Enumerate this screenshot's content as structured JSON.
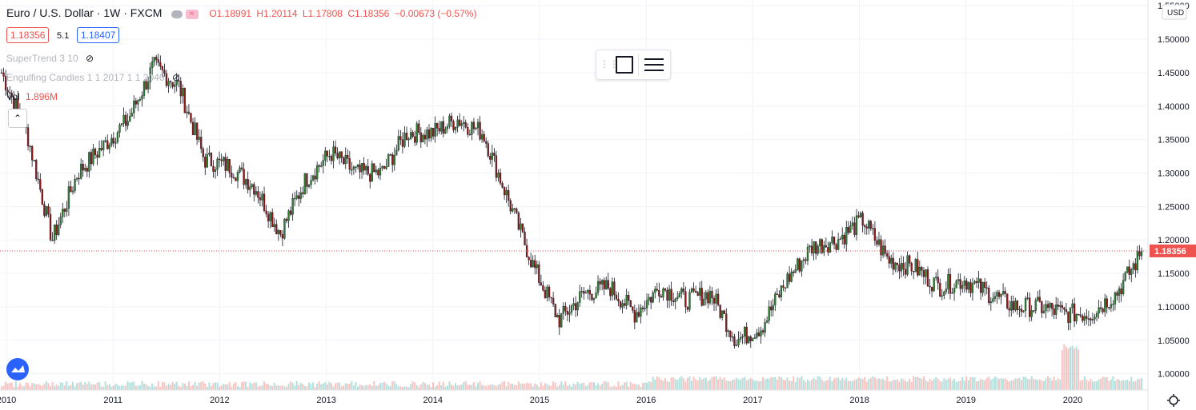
{
  "header": {
    "symbol_title": "Euro / U.S. Dollar · 1W · FXCM",
    "ohlc": {
      "o": "O1.18991",
      "h": "H1.20114",
      "l": "L1.17808",
      "c": "C1.18356",
      "chg": "−0.00673 (−0.57%)"
    },
    "bid": "1.18356",
    "spread": "5.1",
    "ask": "1.18407"
  },
  "indicators": [
    {
      "label": "SuperTrend 3 10"
    },
    {
      "label": "Engulfing Candles 1 1 2017 1 1 2040"
    }
  ],
  "volume": {
    "label": "Vol",
    "value": "1.896M"
  },
  "price_axis": {
    "currency": "USD",
    "last_price": "1.18356",
    "ticks": [
      "1.55000",
      "1.50000",
      "1.45000",
      "1.40000",
      "1.35000",
      "1.30000",
      "1.25000",
      "1.20000",
      "1.15000",
      "1.10000",
      "1.05000",
      "1.00000"
    ]
  },
  "time_axis": {
    "ticks": [
      "2010",
      "2011",
      "2012",
      "2013",
      "2014",
      "2015",
      "2016",
      "2017",
      "2018",
      "2019",
      "2020"
    ]
  },
  "colors": {
    "up": "#26a69a",
    "down": "#ef5350",
    "candle_up": "#2e7d32",
    "candle_down": "#8b1a1a",
    "accent": "#2962ff"
  },
  "chart_data": {
    "type": "candlestick",
    "title": "Euro / U.S. Dollar · 1W · FXCM",
    "ylim": [
      0.99,
      1.555
    ],
    "x": [
      "2009-12",
      "2010-03",
      "2010-06",
      "2010-09",
      "2010-12",
      "2011-03",
      "2011-05",
      "2011-08",
      "2011-11",
      "2012-02",
      "2012-05",
      "2012-07",
      "2012-10",
      "2013-01",
      "2013-04",
      "2013-07",
      "2013-10",
      "2014-01",
      "2014-04",
      "2014-07",
      "2014-10",
      "2015-01",
      "2015-03",
      "2015-06",
      "2015-09",
      "2015-12",
      "2016-03",
      "2016-06",
      "2016-09",
      "2016-12",
      "2017-03",
      "2017-06",
      "2017-09",
      "2017-12",
      "2018-02",
      "2018-05",
      "2018-08",
      "2018-11",
      "2019-02",
      "2019-05",
      "2019-08",
      "2019-11",
      "2020-02",
      "2020-04",
      "2020-06",
      "2020-08"
    ],
    "series": [
      {
        "close": [
          1.45,
          1.36,
          1.2,
          1.3,
          1.34,
          1.38,
          1.46,
          1.43,
          1.32,
          1.31,
          1.28,
          1.21,
          1.29,
          1.33,
          1.3,
          1.3,
          1.36,
          1.36,
          1.38,
          1.36,
          1.26,
          1.16,
          1.08,
          1.12,
          1.13,
          1.09,
          1.13,
          1.11,
          1.12,
          1.05,
          1.07,
          1.14,
          1.19,
          1.2,
          1.23,
          1.17,
          1.16,
          1.13,
          1.14,
          1.12,
          1.1,
          1.1,
          1.09,
          1.09,
          1.12,
          1.18
        ]
      }
    ],
    "last_price": 1.18356
  }
}
